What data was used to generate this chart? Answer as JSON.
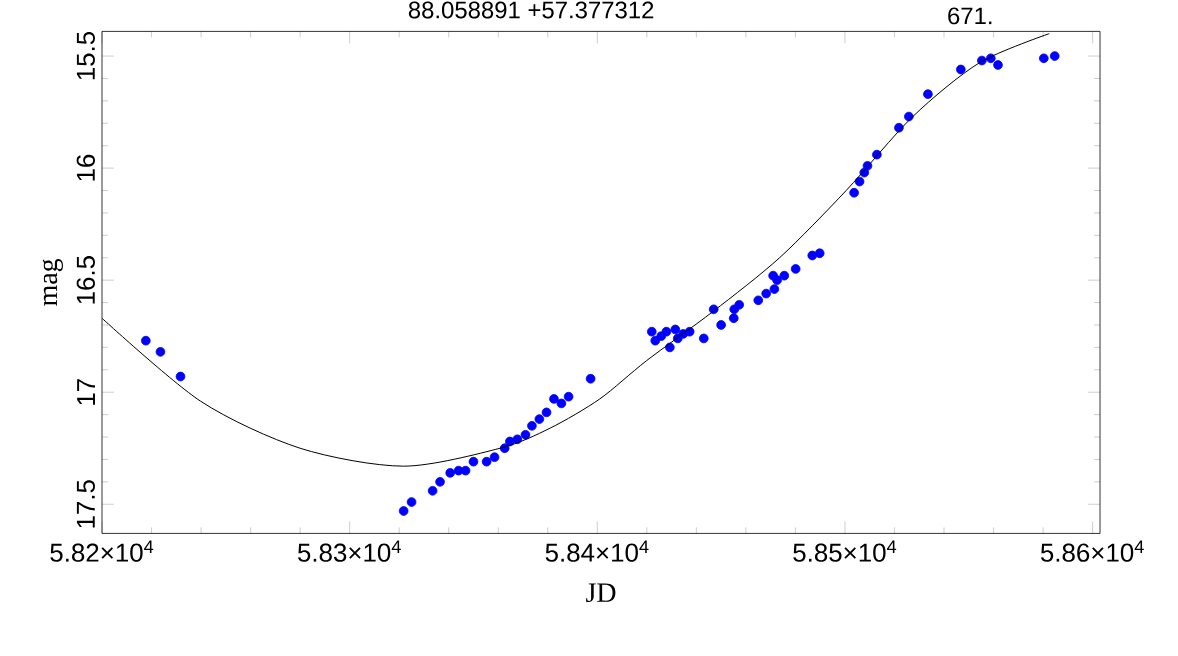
{
  "chart_data": {
    "type": "scatter",
    "title": "88.058891 +57.377312",
    "annotations": [
      "671."
    ],
    "xlabel": "JD",
    "ylabel": "mag",
    "xlim": [
      58200,
      58603
    ],
    "ylim": [
      17.63,
      15.39
    ],
    "xticks": [
      {
        "value": 58200,
        "label": "5.82×10$^{4}$"
      },
      {
        "value": 58300,
        "label": "5.83×10$^{4}$"
      },
      {
        "value": 58400,
        "label": "5.84×10$^{4}$"
      },
      {
        "value": 58500,
        "label": "5.85×10$^{4}$"
      },
      {
        "value": 58600,
        "label": "5.86×10$^{4}$"
      }
    ],
    "yticks": [
      15.5,
      16,
      16.5,
      17,
      17.5
    ],
    "grid": false,
    "marker": "circle",
    "series": [
      {
        "color": "#0000ff",
        "x": [
          58217.7,
          58223.6,
          58231.7,
          58321.8,
          58325,
          58333.5,
          58336.5,
          58340.6,
          58344,
          58346.8,
          58350,
          58355.3,
          58358.5,
          58362.6,
          58364.7,
          58367.7,
          58371,
          58373.6,
          58376.6,
          58379.5,
          58382.5,
          58385.5,
          58388.4,
          58397.3,
          58422,
          58423.4,
          58425.8,
          58427.9,
          58429.3,
          58431.5,
          58432.5,
          58434.7,
          58437.3,
          58443,
          58447,
          58450,
          58455.1,
          58455.3,
          58457.3,
          58465,
          58468.2,
          58471,
          58471.5,
          58472.6,
          58475.5,
          58480.1,
          58486.8,
          58489.8,
          58503.7,
          58505.9,
          58507.8,
          58509.1,
          58512.9,
          58521.8,
          58525.8,
          58533.5,
          58546.8,
          58555.3,
          58558.9,
          58561.8,
          58580.3,
          58584.7
        ],
        "values": [
          16.77,
          16.82,
          16.93,
          17.53,
          17.49,
          17.44,
          17.4,
          17.36,
          17.35,
          17.35,
          17.31,
          17.31,
          17.29,
          17.25,
          17.22,
          17.21,
          17.19,
          17.15,
          17.12,
          17.09,
          17.03,
          17.05,
          17.02,
          16.94,
          16.73,
          16.77,
          16.75,
          16.73,
          16.8,
          16.72,
          16.76,
          16.74,
          16.73,
          16.76,
          16.63,
          16.7,
          16.67,
          16.63,
          16.61,
          16.59,
          16.56,
          16.48,
          16.54,
          16.5,
          16.48,
          16.45,
          16.39,
          16.38,
          16.11,
          16.06,
          16.02,
          15.99,
          15.94,
          15.82,
          15.77,
          15.67,
          15.56,
          15.52,
          15.51,
          15.54,
          15.51,
          15.5
        ]
      },
      {
        "type": "line",
        "marker": "none",
        "color": "#000000",
        "x": [
          58200,
          58239.8,
          58280,
          58321.8,
          58360.7,
          58381,
          58401,
          58419.8,
          58446.7,
          58473.6,
          58500.5,
          58527.4,
          58554.3,
          58582.5
        ],
        "values": [
          16.67,
          17.04,
          17.25,
          17.33,
          17.25,
          17.16,
          17.03,
          16.86,
          16.64,
          16.4,
          16.1,
          15.77,
          15.53,
          15.4
        ]
      }
    ]
  }
}
